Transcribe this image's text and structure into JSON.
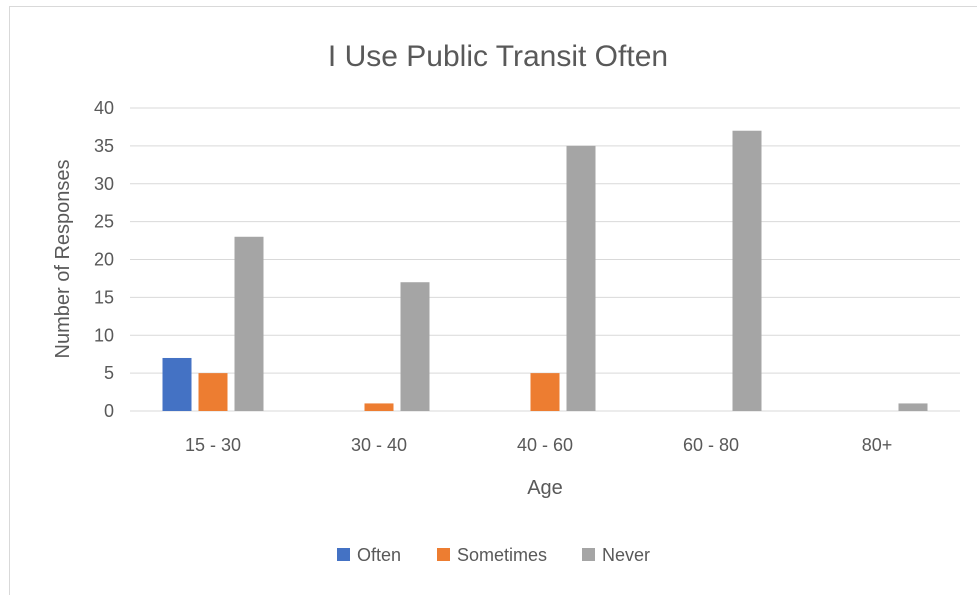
{
  "chart_data": {
    "type": "bar",
    "title": "I Use Public Transit Often",
    "xlabel": "Age",
    "ylabel": "Number of Responses",
    "categories": [
      "15 - 30",
      "30 - 40",
      "40 - 60",
      "60 - 80",
      "80+"
    ],
    "series": [
      {
        "name": "Often",
        "color": "#4472c4",
        "values": [
          7,
          0,
          0,
          0,
          0
        ]
      },
      {
        "name": "Sometimes",
        "color": "#ed7d31",
        "values": [
          5,
          1,
          5,
          0,
          0
        ]
      },
      {
        "name": "Never",
        "color": "#a5a5a5",
        "values": [
          23,
          17,
          35,
          37,
          1
        ]
      }
    ],
    "yticks": [
      "0",
      "5",
      "10",
      "15",
      "20",
      "25",
      "30",
      "35",
      "40"
    ],
    "ylim": [
      0,
      40
    ],
    "grid": true,
    "legend": "bottom"
  }
}
